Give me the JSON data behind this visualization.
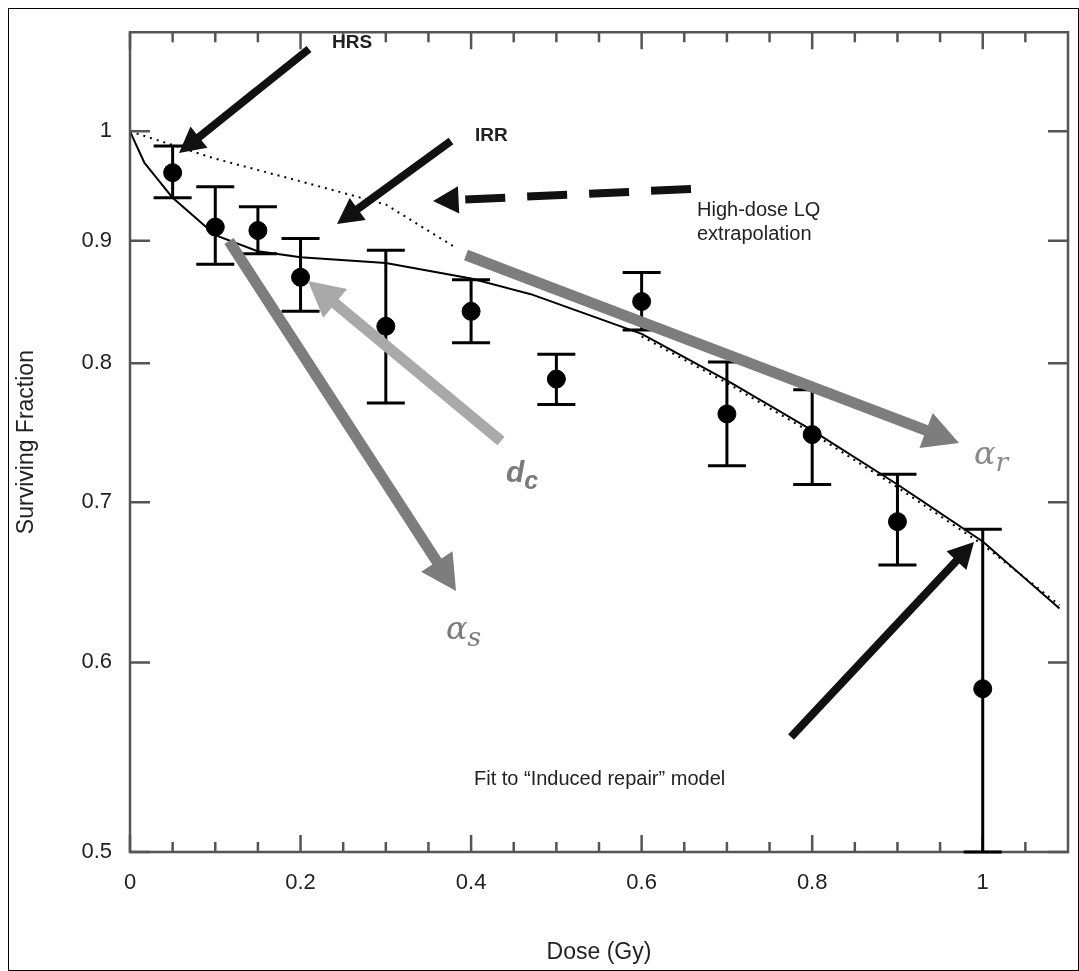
{
  "chart_data": {
    "type": "scatter",
    "xlabel": "Dose (Gy)",
    "ylabel": "Surviving Fraction",
    "log": "y",
    "xlim": [
      0,
      1.1
    ],
    "ylim": [
      0.5,
      1.1
    ],
    "xticks": [
      0,
      {
        "value": 0.05,
        "label": null
      },
      {
        "value": 0.1,
        "label": null
      },
      {
        "value": 0.15,
        "label": null
      },
      0.2,
      {
        "value": 0.25,
        "label": null
      },
      {
        "value": 0.3,
        "label": null
      },
      {
        "value": 0.35,
        "label": null
      },
      0.4,
      {
        "value": 0.45,
        "label": null
      },
      {
        "value": 0.5,
        "label": null
      },
      {
        "value": 0.55,
        "label": null
      },
      0.6,
      {
        "value": 0.65,
        "label": null
      },
      {
        "value": 0.7,
        "label": null
      },
      {
        "value": 0.75,
        "label": null
      },
      0.8,
      {
        "value": 0.85,
        "label": null
      },
      {
        "value": 0.9,
        "label": null
      },
      {
        "value": 0.95,
        "label": null
      },
      1,
      {
        "value": 1.05,
        "label": null
      }
    ],
    "yticks": [
      0.5,
      0.6,
      0.7,
      0.8,
      0.9,
      1
    ],
    "series": [
      {
        "type": "scatter",
        "color": "#000000",
        "marker": "circle",
        "x": [
          0.05,
          0.1,
          0.15,
          0.2,
          0.3,
          0.4,
          0.5,
          0.6,
          0.7,
          0.8,
          0.9,
          1.0
        ],
        "values": [
          0.961,
          0.912,
          0.909,
          0.869,
          0.829,
          0.841,
          0.788,
          0.849,
          0.762,
          0.747,
          0.687,
          0.585
        ],
        "errors": [
          [
            0.938,
            0.986
          ],
          [
            0.88,
            0.948
          ],
          [
            0.889,
            0.93
          ],
          [
            0.841,
            0.902
          ],
          [
            0.77,
            0.892
          ],
          [
            0.816,
            0.867
          ],
          [
            0.769,
            0.807
          ],
          [
            0.826,
            0.873
          ],
          [
            0.725,
            0.801
          ],
          [
            0.712,
            0.78
          ],
          [
            0.659,
            0.719
          ],
          [
            0.5,
            0.682
          ]
        ]
      },
      {
        "type": "line",
        "color": "#000000",
        "line_style": "solid",
        "x": [
          0,
          0.017,
          0.05,
          0.1,
          0.15,
          0.2,
          0.3,
          0.4,
          0.47,
          0.6,
          0.7,
          0.8,
          0.9,
          1.0,
          1.09
        ],
        "values": [
          1,
          0.97,
          0.938,
          0.905,
          0.891,
          0.886,
          0.881,
          0.868,
          0.855,
          0.823,
          0.787,
          0.75,
          0.712,
          0.674,
          0.632
        ]
      },
      {
        "type": "line",
        "color": "#000000",
        "line_style": "dotted",
        "x": [
          0,
          0.1,
          0.2,
          0.3,
          0.38,
          0.5,
          0.6,
          0.7,
          0.8,
          0.9,
          1.0,
          1.09
        ],
        "values": [
          1,
          0.974,
          0.953,
          0.932,
          0.895,
          null,
          0.821,
          0.785,
          0.748,
          0.71,
          0.672,
          0.634
        ]
      }
    ],
    "annotations": [
      "HRS",
      "IRR",
      "High-dose LQ extrapolation",
      "Fit to “Induced repair” model",
      "α$_{s}$",
      "d$_{c}$",
      "α$_{r}$"
    ]
  }
}
